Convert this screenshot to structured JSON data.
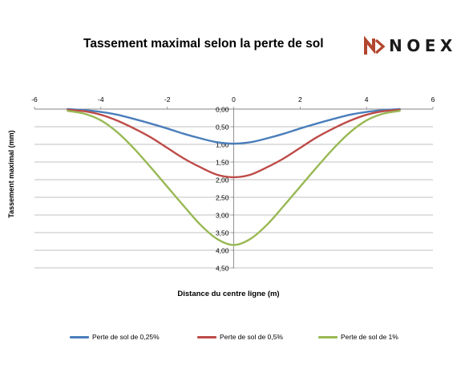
{
  "chart_data": {
    "type": "line",
    "title": "Tassement maximal selon la perte de sol",
    "xlabel": "Distance du centre ligne (m)",
    "ylabel": "Tassement maximal (mm)",
    "xlim": [
      -6,
      6
    ],
    "ylim": [
      0,
      4.5
    ],
    "y_inverted": true,
    "x_ticks": [
      "-6",
      "-4",
      "-2",
      "0",
      "2",
      "4",
      "6"
    ],
    "y_ticks": [
      "0,00",
      "0,50",
      "1,00",
      "1,50",
      "2,00",
      "2,50",
      "3,00",
      "3,50",
      "4,00",
      "4,50"
    ],
    "grid": "horizontal",
    "legend_position": "bottom",
    "series": [
      {
        "name": "Perte de sol de 0,25%",
        "color": "#4a7ebb",
        "x": [
          -5,
          -4.5,
          -4,
          -3.5,
          -3,
          -2.5,
          -2,
          -1.5,
          -1,
          -0.5,
          0,
          0.5,
          1,
          1.5,
          2,
          2.5,
          3,
          3.5,
          4,
          4.5,
          5
        ],
        "y": [
          0.0,
          0.03,
          0.08,
          0.16,
          0.28,
          0.41,
          0.55,
          0.7,
          0.83,
          0.94,
          0.98,
          0.94,
          0.83,
          0.7,
          0.55,
          0.41,
          0.28,
          0.16,
          0.08,
          0.03,
          0.0
        ]
      },
      {
        "name": "Perte de sol de 0,5%",
        "color": "#be4b48",
        "x": [
          -5,
          -4.5,
          -4,
          -3.5,
          -3,
          -2.5,
          -2,
          -1.5,
          -1,
          -0.5,
          0,
          0.5,
          1,
          1.5,
          2,
          2.5,
          3,
          3.5,
          4,
          4.5,
          5
        ],
        "y": [
          0.02,
          0.06,
          0.16,
          0.33,
          0.55,
          0.8,
          1.1,
          1.4,
          1.65,
          1.86,
          1.93,
          1.86,
          1.65,
          1.4,
          1.1,
          0.8,
          0.55,
          0.33,
          0.16,
          0.06,
          0.02
        ]
      },
      {
        "name": "Perte de sol de 1%",
        "color": "#98b954",
        "x": [
          -5,
          -4.5,
          -4,
          -3.5,
          -3,
          -2.5,
          -2,
          -1.5,
          -1,
          -0.5,
          0,
          0.5,
          1,
          1.5,
          2,
          2.5,
          3,
          3.5,
          4,
          4.5,
          5
        ],
        "y": [
          0.05,
          0.13,
          0.32,
          0.66,
          1.12,
          1.65,
          2.2,
          2.75,
          3.28,
          3.68,
          3.85,
          3.68,
          3.28,
          2.75,
          2.2,
          1.65,
          1.12,
          0.66,
          0.32,
          0.13,
          0.05
        ]
      }
    ]
  },
  "logo": {
    "text": "NOEX",
    "icon": "noex-mark-icon",
    "color": "#b2462e"
  },
  "axis_color": "#868686",
  "grid_color": "#868686"
}
